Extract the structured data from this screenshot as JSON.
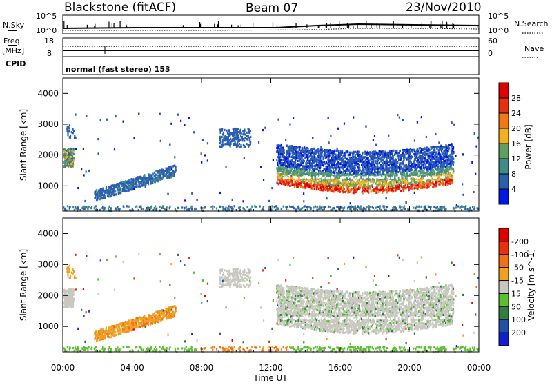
{
  "header": {
    "station": "Blackstone (fitACF)",
    "beam": "Beam 07",
    "date": "23/Nov/2010"
  },
  "noise_panel": {
    "left_label": "N.Sky",
    "right_label": "N.Search",
    "left_ticks": [
      "10^5",
      "10^0"
    ],
    "right_ticks": [
      "10^5",
      "10^0"
    ]
  },
  "freq_panel": {
    "left_label_1": "Freq.",
    "left_label_2": "[MHz]",
    "right_label": "Nave",
    "left_ticks": [
      "18",
      "8"
    ],
    "right_ticks": [
      "60",
      "0"
    ]
  },
  "cpid": {
    "label": "CPID",
    "mode": "normal (fast stereo) 153"
  },
  "chart_data": [
    {
      "type": "heatmap",
      "title": "Power",
      "ylabel": "Slant Range [km]",
      "xlabel": "Time UT",
      "ylim": [
        180,
        4500
      ],
      "xlim": [
        0,
        24
      ],
      "y_ticks": [
        "1000",
        "2000",
        "3000",
        "4000"
      ],
      "x_ticks": [
        "00:00",
        "04:00",
        "08:00",
        "12:00",
        "16:00",
        "20:00",
        "00:00"
      ],
      "colorbar": {
        "label": "Power [dB]",
        "ticks": [
          "4",
          "8",
          "12",
          "16",
          "20",
          "24",
          "28"
        ],
        "colors": [
          "#0018e6",
          "#2a5fb0",
          "#3f8a8a",
          "#5fa060",
          "#f0b020",
          "#f07818",
          "#e83010",
          "#e00000"
        ]
      },
      "regions": [
        {
          "t": [
            0.0,
            0.6
          ],
          "range": [
            1650,
            2250
          ],
          "level": "medium"
        },
        {
          "t": [
            1.8,
            6.5
          ],
          "range": [
            600,
            1600
          ],
          "level": "low"
        },
        {
          "t": [
            9.0,
            10.8
          ],
          "range": [
            2300,
            2900
          ],
          "level": "low"
        },
        {
          "t": [
            12.3,
            22.5
          ],
          "range": [
            650,
            2400
          ],
          "level": "high"
        }
      ]
    },
    {
      "type": "heatmap",
      "title": "Velocity",
      "ylabel": "Slant Range [km]",
      "xlabel": "Time UT",
      "ylim": [
        180,
        4500
      ],
      "xlim": [
        0,
        24
      ],
      "y_ticks": [
        "1000",
        "2000",
        "3000",
        "4000"
      ],
      "x_ticks": [
        "00:00",
        "04:00",
        "08:00",
        "12:00",
        "16:00",
        "20:00",
        "00:00"
      ],
      "colorbar": {
        "label": "Velocity [m s^-1]",
        "ticks": [
          "200",
          "100",
          "50",
          "15",
          "-15",
          "-50",
          "-100",
          "-200"
        ],
        "colors": [
          "#1020d0",
          "#2050a8",
          "#2f8040",
          "#5cbe30",
          "#c8c8c0",
          "#f0a020",
          "#f07018",
          "#e83010",
          "#e00000"
        ]
      }
    }
  ]
}
